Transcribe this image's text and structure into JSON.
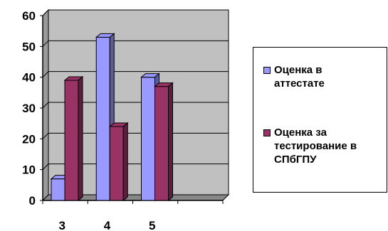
{
  "chart_data": {
    "type": "bar",
    "categories": [
      "3",
      "4",
      "5"
    ],
    "series": [
      {
        "name": "Оценка в аттестате",
        "values": [
          7,
          53,
          40
        ],
        "color": "#9999ff"
      },
      {
        "name": "Оценка за тестирование в СПбГПУ",
        "values": [
          39,
          24,
          37
        ],
        "color": "#993366"
      }
    ],
    "yticks": [
      "0",
      "10",
      "20",
      "30",
      "40",
      "50",
      "60"
    ],
    "ylim": [
      0,
      60
    ],
    "xlabel": "",
    "ylabel": "",
    "title": "",
    "grid": true,
    "legend_position": "right",
    "plot_background": "#c0c0c0",
    "style": "3d-clustered-column"
  },
  "legend": {
    "items": [
      {
        "label": "Оценка в\nаттестате",
        "color": "#9999ff"
      },
      {
        "label": "Оценка за\nтестирование в\nСПбГПУ",
        "color": "#993366"
      }
    ]
  }
}
